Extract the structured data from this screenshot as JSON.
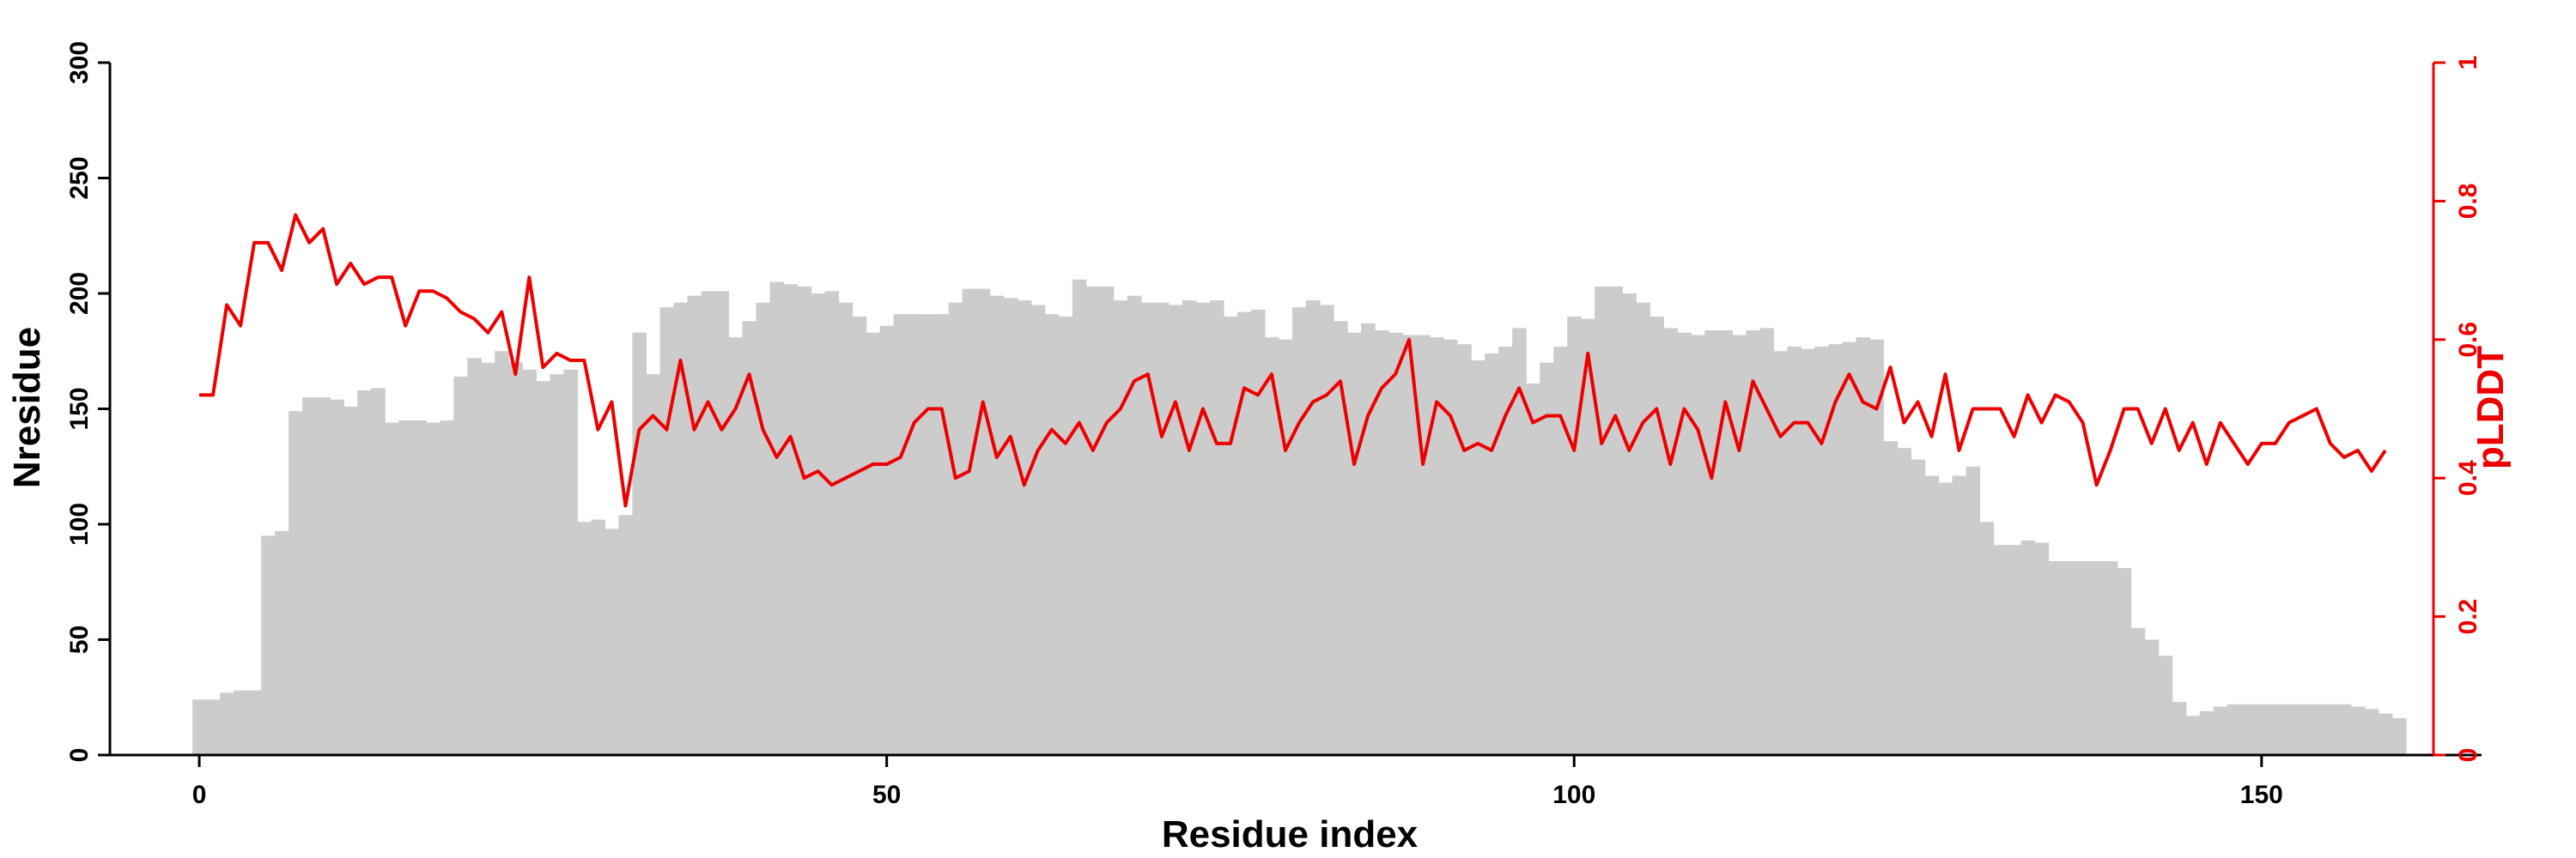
{
  "chart_data": {
    "type": "bar+line",
    "xlabel": "Residue index",
    "ylabel": "Nresidue",
    "y2label": "pLDDT",
    "xlim": [
      -6.5,
      166
    ],
    "ylim": [
      0,
      300
    ],
    "y2lim": [
      0,
      1
    ],
    "x_ticks": [
      0,
      50,
      100,
      150
    ],
    "y_ticks": [
      0,
      50,
      100,
      150,
      200,
      250,
      300
    ],
    "y2_ticks": [
      0,
      0.2,
      0.4,
      0.6,
      0.8,
      1
    ],
    "x_tick_labels": [
      "0",
      "50",
      "100",
      "150"
    ],
    "y_tick_labels": [
      "0",
      "50",
      "100",
      "150",
      "200",
      "250",
      "300"
    ],
    "y2_tick_labels": [
      "0",
      "0.2",
      "0.4",
      "0.6",
      "0.8",
      "1"
    ],
    "colors": {
      "bars": "#cccccc",
      "line": "#ee0000",
      "axis": "#000000",
      "y2axis": "#ee0000"
    },
    "series": [
      {
        "kind": "bar",
        "x_start": 0,
        "values": [
          24,
          24,
          27,
          28,
          28,
          95,
          97,
          149,
          155,
          155,
          154,
          151,
          158,
          159,
          144,
          145,
          145,
          144,
          145,
          164,
          172,
          170,
          175,
          170,
          167,
          162,
          165,
          167,
          101,
          102,
          98,
          104,
          183,
          165,
          194,
          196,
          199,
          201,
          201,
          181,
          188,
          196,
          205,
          204,
          203,
          200,
          201,
          196,
          190,
          183,
          186,
          191,
          191,
          191,
          191,
          196,
          202,
          202,
          199,
          198,
          197,
          195,
          191,
          190,
          206,
          203,
          203,
          197,
          199,
          196,
          196,
          195,
          197,
          196,
          197,
          190,
          192,
          193,
          181,
          180,
          194,
          197,
          195,
          188,
          183,
          187,
          184,
          183,
          182,
          182,
          181,
          180,
          178,
          171,
          174,
          177,
          185,
          161,
          170,
          177,
          190,
          189,
          203,
          203,
          200,
          196,
          190,
          185,
          183,
          182,
          184,
          184,
          182,
          184,
          185,
          175,
          177,
          176,
          177,
          178,
          179,
          181,
          180,
          136,
          133,
          128,
          121,
          118,
          121,
          125,
          101,
          91,
          91,
          93,
          92,
          84,
          84,
          84,
          84,
          84,
          81,
          55,
          50,
          43,
          23,
          17,
          19,
          21,
          22,
          22,
          22,
          22,
          22,
          22,
          22,
          22,
          22,
          21,
          20,
          18,
          16
        ]
      },
      {
        "kind": "line",
        "x_start": 0,
        "values": [
          0.52,
          0.52,
          0.65,
          0.62,
          0.74,
          0.74,
          0.7,
          0.78,
          0.74,
          0.76,
          0.68,
          0.71,
          0.68,
          0.69,
          0.69,
          0.62,
          0.67,
          0.67,
          0.66,
          0.64,
          0.63,
          0.61,
          0.64,
          0.55,
          0.69,
          0.56,
          0.58,
          0.57,
          0.57,
          0.47,
          0.51,
          0.36,
          0.47,
          0.49,
          0.47,
          0.57,
          0.47,
          0.51,
          0.47,
          0.5,
          0.55,
          0.47,
          0.43,
          0.46,
          0.4,
          0.41,
          0.39,
          0.4,
          0.41,
          0.42,
          0.42,
          0.43,
          0.48,
          0.5,
          0.5,
          0.4,
          0.41,
          0.51,
          0.43,
          0.46,
          0.39,
          0.44,
          0.47,
          0.45,
          0.48,
          0.44,
          0.48,
          0.5,
          0.54,
          0.55,
          0.46,
          0.51,
          0.44,
          0.5,
          0.45,
          0.45,
          0.53,
          0.52,
          0.55,
          0.44,
          0.48,
          0.51,
          0.52,
          0.54,
          0.42,
          0.49,
          0.53,
          0.55,
          0.6,
          0.42,
          0.51,
          0.49,
          0.44,
          0.45,
          0.44,
          0.49,
          0.53,
          0.48,
          0.49,
          0.49,
          0.44,
          0.58,
          0.45,
          0.49,
          0.44,
          0.48,
          0.5,
          0.42,
          0.5,
          0.47,
          0.4,
          0.51,
          0.44,
          0.54,
          0.5,
          0.46,
          0.48,
          0.48,
          0.45,
          0.51,
          0.55,
          0.51,
          0.5,
          0.56,
          0.48,
          0.51,
          0.46,
          0.55,
          0.44,
          0.5,
          0.5,
          0.5,
          0.46,
          0.52,
          0.48,
          0.52,
          0.51,
          0.48,
          0.39,
          0.44,
          0.5,
          0.5,
          0.45,
          0.5,
          0.44,
          0.48,
          0.42,
          0.48,
          0.45,
          0.42,
          0.45,
          0.45,
          0.48,
          0.49,
          0.5,
          0.45,
          0.43,
          0.44,
          0.41,
          0.44
        ]
      }
    ]
  }
}
